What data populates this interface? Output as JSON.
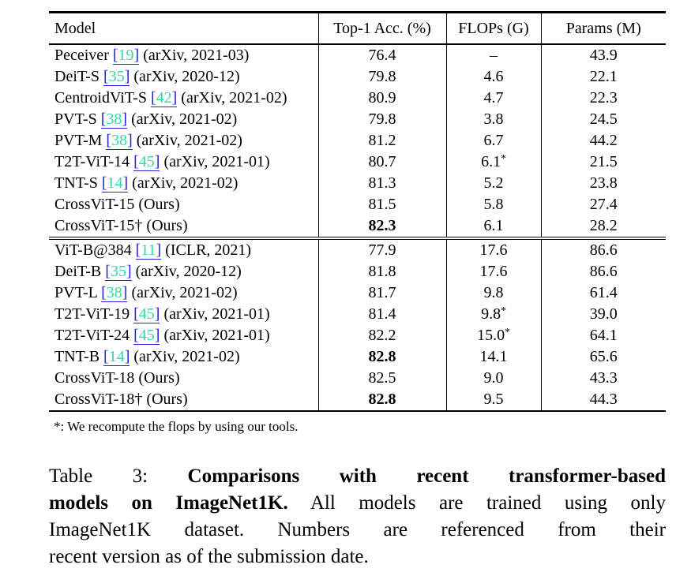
{
  "colors": {
    "citation_link_blue": "#2222DD",
    "citation_number_green": "#35D9A2"
  },
  "table": {
    "headers": [
      "Model",
      "Top-1 Acc. (%)",
      "FLOPs (G)",
      "Params (M)"
    ],
    "groups": [
      {
        "rows": [
          {
            "model": "Peceiver",
            "cite": "19",
            "venue": "(arXiv, 2021-03)",
            "acc": "76.4",
            "bold_acc": false,
            "flops": "–",
            "params": "43.9"
          },
          {
            "model": "DeiT-S",
            "cite": "35",
            "venue": "(arXiv, 2020-12)",
            "acc": "79.8",
            "bold_acc": false,
            "flops": "4.6",
            "params": "22.1"
          },
          {
            "model": "CentroidViT-S",
            "cite": "42",
            "venue": "(arXiv, 2021-02)",
            "acc": "80.9",
            "bold_acc": false,
            "flops": "4.7",
            "params": "22.3"
          },
          {
            "model": "PVT-S",
            "cite": "38",
            "venue": "(arXiv, 2021-02)",
            "acc": "79.8",
            "bold_acc": false,
            "flops": "3.8",
            "params": "24.5"
          },
          {
            "model": "PVT-M",
            "cite": "38",
            "venue": "(arXiv, 2021-02)",
            "acc": "81.2",
            "bold_acc": false,
            "flops": "6.7",
            "params": "44.2"
          },
          {
            "model": "T2T-ViT-14",
            "cite": "45",
            "venue": "(arXiv, 2021-01)",
            "acc": "80.7",
            "bold_acc": false,
            "flops": "6.1*",
            "params": "21.5"
          },
          {
            "model": "TNT-S",
            "cite": "14",
            "venue": "(arXiv, 2021-02)",
            "acc": "81.3",
            "bold_acc": false,
            "flops": "5.2",
            "params": "23.8"
          },
          {
            "model": "CrossViT-15",
            "cite": null,
            "venue": "(Ours)",
            "acc": "81.5",
            "bold_acc": false,
            "flops": "5.8",
            "params": "27.4"
          },
          {
            "model": "CrossViT-15†",
            "cite": null,
            "venue": "(Ours)",
            "acc": "82.3",
            "bold_acc": true,
            "flops": "6.1",
            "params": "28.2"
          }
        ]
      },
      {
        "rows": [
          {
            "model": "ViT-B@384",
            "cite": "11",
            "venue": "(ICLR, 2021)",
            "acc": "77.9",
            "bold_acc": false,
            "flops": "17.6",
            "params": "86.6"
          },
          {
            "model": "DeiT-B",
            "cite": "35",
            "venue": "(arXiv, 2020-12)",
            "acc": "81.8",
            "bold_acc": false,
            "flops": "17.6",
            "params": "86.6"
          },
          {
            "model": "PVT-L",
            "cite": "38",
            "venue": "(arXiv, 2021-02)",
            "acc": "81.7",
            "bold_acc": false,
            "flops": "9.8",
            "params": "61.4"
          },
          {
            "model": "T2T-ViT-19",
            "cite": "45",
            "venue": "(arXiv, 2021-01)",
            "acc": "81.4",
            "bold_acc": false,
            "flops": "9.8*",
            "params": "39.0"
          },
          {
            "model": "T2T-ViT-24",
            "cite": "45",
            "venue": "(arXiv, 2021-01)",
            "acc": "82.2",
            "bold_acc": false,
            "flops": "15.0*",
            "params": "64.1"
          },
          {
            "model": "TNT-B",
            "cite": "14",
            "venue": "(arXiv, 2021-02)",
            "acc": "82.8",
            "bold_acc": true,
            "flops": "14.1",
            "params": "65.6"
          },
          {
            "model": "CrossViT-18",
            "cite": null,
            "venue": "(Ours)",
            "acc": "82.5",
            "bold_acc": false,
            "flops": "9.0",
            "params": "43.3"
          },
          {
            "model": "CrossViT-18†",
            "cite": null,
            "venue": "(Ours)",
            "acc": "82.8",
            "bold_acc": true,
            "flops": "9.5",
            "params": "44.3"
          }
        ]
      }
    ],
    "footnote": "*: We recompute the flops by using our tools."
  },
  "caption": {
    "lines": [
      {
        "runs": [
          {
            "t": "Table 3:",
            "b": false
          },
          {
            "t": " ",
            "b": false
          },
          {
            "t": "Comparisons with recent transformer-based",
            "b": true
          }
        ]
      },
      {
        "runs": [
          {
            "t": "models on ImageNet1K.",
            "b": true
          },
          {
            "t": " All models are trained using only",
            "b": false
          }
        ]
      },
      {
        "runs": [
          {
            "t": "ImageNet1K dataset.  Numbers are referenced from their",
            "b": false
          }
        ]
      },
      {
        "runs": [
          {
            "t": "recent version as of the submission date.",
            "b": false
          }
        ]
      }
    ]
  }
}
